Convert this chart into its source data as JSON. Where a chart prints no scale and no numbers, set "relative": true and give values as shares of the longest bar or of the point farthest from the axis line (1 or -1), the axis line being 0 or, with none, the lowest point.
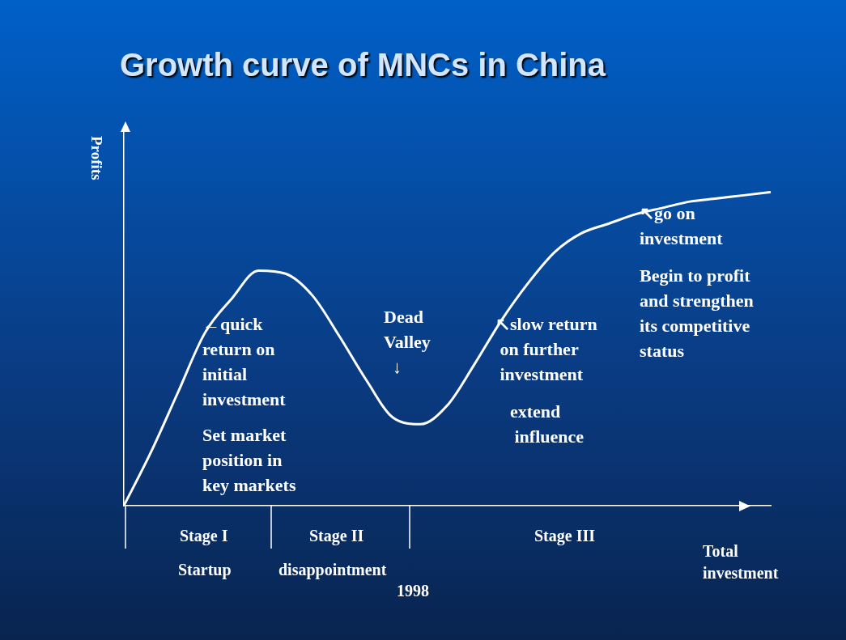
{
  "chart_data": {
    "type": "line",
    "title": "Growth curve of MNCs in China",
    "xlabel": "Total investment",
    "ylabel": "Profits",
    "categories": [
      null,
      null,
      null,
      null,
      null,
      null,
      null,
      null,
      null,
      null,
      null,
      null,
      null,
      null,
      null,
      null,
      null,
      null,
      null,
      null,
      null,
      null,
      null,
      null,
      null
    ],
    "values": [
      0,
      0.17,
      0.36,
      0.55,
      0.66,
      0.75,
      0.74,
      0.67,
      0.54,
      0.4,
      0.28,
      0.26,
      0.32,
      0.45,
      0.59,
      0.71,
      0.81,
      0.87,
      0.9,
      0.93,
      0.95,
      0.97,
      0.98,
      0.99,
      1
    ],
    "color": "#ffffff",
    "relative": true,
    "marker": "none",
    "annotations": [
      "←quick\nreturn on\ninitial\ninvestment",
      "Set market\nposition in\nkey markets",
      "Dead\nValley\n  ↓",
      "↖slow return\n on further\n investment",
      "extend\n influence",
      "↖go on\ninvestment",
      "Begin to profit\nand strengthen\nits competitive\nstatus",
      "Stage I",
      "Stage II",
      "Stage III",
      "Startup",
      "disappointment",
      "1998"
    ]
  }
}
